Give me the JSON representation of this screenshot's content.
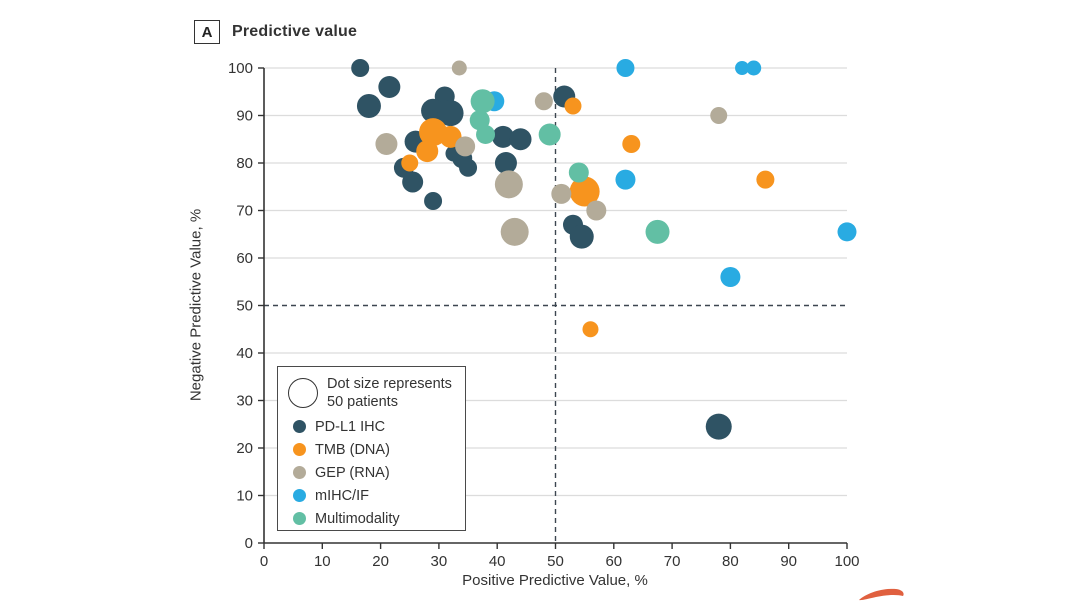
{
  "panel": {
    "label": "A",
    "title": "Predictive value"
  },
  "chart_data": {
    "type": "scatter",
    "title": "Predictive value",
    "xlabel": "Positive Predictive Value, %",
    "ylabel": "Negative Predictive Value, %",
    "xlim": [
      0,
      100
    ],
    "ylim": [
      0,
      100
    ],
    "xticks": [
      0,
      10,
      20,
      30,
      40,
      50,
      60,
      70,
      80,
      90,
      100
    ],
    "yticks": [
      0,
      10,
      20,
      30,
      40,
      50,
      60,
      70,
      80,
      90,
      100
    ],
    "grid": "horizontal-only",
    "reference_lines": {
      "x": 50,
      "y": 50,
      "style": "dashed"
    },
    "size_legend": {
      "line1": "Dot size represents",
      "line2": "50 patients",
      "patients": 50
    },
    "point_format": [
      "x_percent",
      "y_percent",
      "radius_px"
    ],
    "series": [
      {
        "name": "PD-L1 IHC",
        "color": "#2F5364",
        "points": [
          [
            16.5,
            100,
            9
          ],
          [
            21.5,
            96,
            11
          ],
          [
            18,
            92,
            12
          ],
          [
            31,
            94,
            10
          ],
          [
            29,
            91,
            12
          ],
          [
            32,
            90.5,
            13
          ],
          [
            26,
            84.5,
            11
          ],
          [
            24,
            79,
            10
          ],
          [
            25.5,
            76,
            10.5
          ],
          [
            29,
            72,
            9
          ],
          [
            32.5,
            82,
            8
          ],
          [
            34,
            81,
            10
          ],
          [
            35,
            79,
            9
          ],
          [
            41,
            85.5,
            11
          ],
          [
            44,
            85,
            11
          ],
          [
            41.5,
            80,
            11
          ],
          [
            51.5,
            94,
            11
          ],
          [
            53,
            67,
            10
          ],
          [
            54.5,
            64.5,
            12
          ],
          [
            78,
            24.5,
            13
          ]
        ]
      },
      {
        "name": "TMB (DNA)",
        "color": "#F7941E",
        "points": [
          [
            29,
            86.5,
            14
          ],
          [
            32,
            85.5,
            11
          ],
          [
            28,
            82.5,
            11
          ],
          [
            25,
            80,
            8.5
          ],
          [
            53,
            92,
            8.5
          ],
          [
            55,
            74,
            15
          ],
          [
            63,
            84,
            9
          ],
          [
            86,
            76.5,
            9
          ],
          [
            56,
            45,
            8
          ]
        ]
      },
      {
        "name": "GEP (RNA)",
        "color": "#B3AB99",
        "points": [
          [
            33.5,
            100,
            7.5
          ],
          [
            21,
            84,
            11
          ],
          [
            34.5,
            83.5,
            10
          ],
          [
            48,
            93,
            9
          ],
          [
            42,
            75.5,
            14
          ],
          [
            51,
            73.5,
            10
          ],
          [
            57,
            70,
            10
          ],
          [
            43,
            65.5,
            14
          ],
          [
            78,
            90,
            8.5
          ]
        ]
      },
      {
        "name": "mIHC/IF",
        "color": "#29ABE2",
        "points": [
          [
            39.5,
            93,
            10
          ],
          [
            62,
            100,
            9
          ],
          [
            82,
            100,
            7
          ],
          [
            84,
            100,
            7.5
          ],
          [
            62,
            76.5,
            10
          ],
          [
            80,
            56,
            10
          ],
          [
            100,
            65.5,
            9.5
          ]
        ]
      },
      {
        "name": "Multimodality",
        "color": "#62BFA4",
        "points": [
          [
            37.5,
            93,
            12
          ],
          [
            37,
            89,
            10
          ],
          [
            38,
            86,
            9.5
          ],
          [
            49,
            86,
            11
          ],
          [
            54,
            78,
            10
          ],
          [
            67.5,
            65.5,
            12
          ]
        ]
      }
    ],
    "legend_position": "lower-left-inside"
  },
  "colors": {
    "axis": "#333333",
    "grid": "#dcdcdc",
    "dashed_line": "#3c4650",
    "text": "#333333",
    "background": "#ffffff"
  },
  "decor": {
    "swoosh_color": "#E0603F"
  }
}
